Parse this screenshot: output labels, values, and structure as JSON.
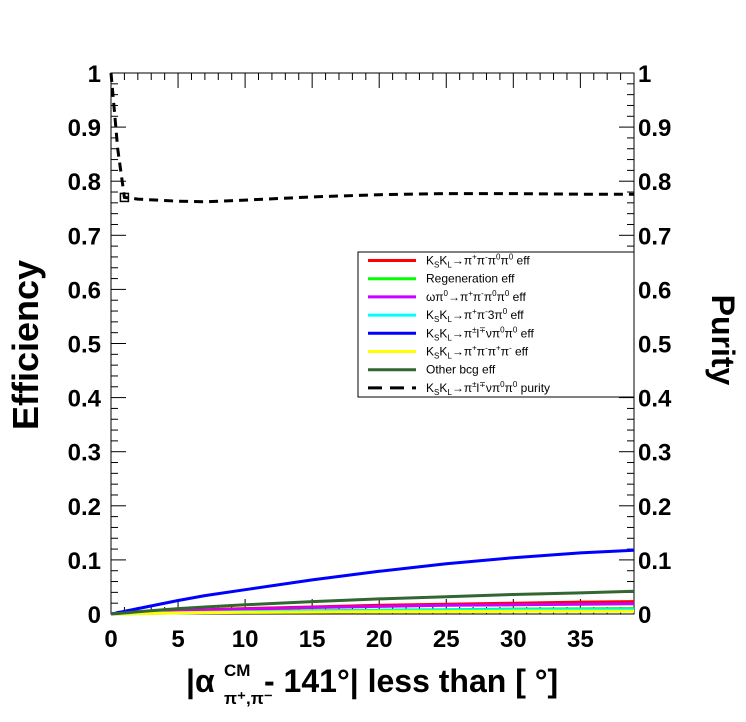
{
  "chart_data": {
    "type": "line",
    "title": "",
    "xlabel": "|α(CM, π+,π-) - 141°| less than [ °]",
    "xlabel_parts": {
      "pre": "|α",
      "sup": "CM",
      "sub": "π⁺,π⁻",
      "post": " - 141°| less than [ °]"
    },
    "ylabel": "Efficiency",
    "y2label": "Purity",
    "xlim": [
      0,
      39
    ],
    "ylim": [
      0,
      1
    ],
    "y2lim": [
      0,
      1
    ],
    "x_ticks": [
      "0",
      "5",
      "10",
      "15",
      "20",
      "25",
      "30",
      "35"
    ],
    "y_ticks": [
      "0",
      "0.1",
      "0.2",
      "0.3",
      "0.4",
      "0.5",
      "0.6",
      "0.7",
      "0.8",
      "0.9",
      "1"
    ],
    "legend_position": "center-right",
    "grid": false,
    "x": [
      0,
      0.25,
      0.5,
      1,
      2,
      5,
      7,
      10,
      15,
      20,
      25,
      30,
      35,
      39
    ],
    "series": [
      {
        "name": "KSKL→π+π-π0π0 eff",
        "legend": {
          "main": "K",
          "parts": [
            [
              "S",
              "sub"
            ],
            [
              "K",
              ""
            ],
            [
              "L",
              "sub"
            ],
            [
              "→π",
              ""
            ],
            [
              "+",
              "sup"
            ],
            [
              "π",
              ""
            ],
            [
              "-",
              "sup"
            ],
            [
              "π",
              ""
            ],
            [
              "0",
              "sup"
            ],
            [
              "π",
              ""
            ],
            [
              "0",
              "sup"
            ],
            [
              " eff",
              ""
            ]
          ]
        },
        "color": "#ff0000",
        "dash": false,
        "values": [
          0,
          0.0003,
          0.0006,
          0.0012,
          0.0025,
          0.006,
          0.008,
          0.01,
          0.013,
          0.016,
          0.018,
          0.02,
          0.022,
          0.023
        ]
      },
      {
        "name": "Regeneration eff",
        "legend": {
          "main": "Regeneration eff",
          "parts": []
        },
        "color": "#00ff00",
        "dash": false,
        "values": [
          0,
          0.0002,
          0.0004,
          0.0008,
          0.0016,
          0.003,
          0.004,
          0.005,
          0.006,
          0.007,
          0.008,
          0.009,
          0.0095,
          0.01
        ]
      },
      {
        "name": "ωπ0→π+π-π0π0 eff",
        "legend": {
          "main": "ωπ",
          "parts": [
            [
              "0",
              "sup"
            ],
            [
              "→π",
              ""
            ],
            [
              "+",
              "sup"
            ],
            [
              "π",
              ""
            ],
            [
              "-",
              "sup"
            ],
            [
              "π",
              ""
            ],
            [
              "0",
              "sup"
            ],
            [
              "π",
              ""
            ],
            [
              "0",
              "sup"
            ],
            [
              " eff",
              ""
            ]
          ]
        },
        "color": "#cc00ff",
        "dash": false,
        "values": [
          0,
          0.0003,
          0.0006,
          0.0012,
          0.0024,
          0.005,
          0.007,
          0.009,
          0.012,
          0.014,
          0.016,
          0.017,
          0.018,
          0.019
        ]
      },
      {
        "name": "KSKL→π+π-3π0 eff",
        "legend": {
          "main": "K",
          "parts": [
            [
              "S",
              "sub"
            ],
            [
              "K",
              ""
            ],
            [
              "L",
              "sub"
            ],
            [
              "→π",
              ""
            ],
            [
              "+",
              "sup"
            ],
            [
              "π",
              ""
            ],
            [
              "-",
              "sup"
            ],
            [
              "3π",
              ""
            ],
            [
              "0",
              "sup"
            ],
            [
              " eff",
              ""
            ]
          ]
        },
        "color": "#00ffff",
        "dash": false,
        "values": [
          0,
          0.0001,
          0.0002,
          0.0004,
          0.0008,
          0.002,
          0.003,
          0.004,
          0.005,
          0.006,
          0.007,
          0.0075,
          0.008,
          0.008
        ]
      },
      {
        "name": "KSKL→π±l∓νπ0π0 eff",
        "legend": {
          "main": "K",
          "parts": [
            [
              "S",
              "sub"
            ],
            [
              "K",
              ""
            ],
            [
              "L",
              "sub"
            ],
            [
              "→π",
              ""
            ],
            [
              "±",
              "sup"
            ],
            [
              "l",
              ""
            ],
            [
              "∓",
              "sup"
            ],
            [
              "νπ",
              ""
            ],
            [
              "0",
              "sup"
            ],
            [
              "π",
              ""
            ],
            [
              "0",
              "sup"
            ],
            [
              " eff",
              ""
            ]
          ]
        },
        "color": "#0000ff",
        "dash": false,
        "values": [
          0,
          0.0012,
          0.0025,
          0.005,
          0.01,
          0.025,
          0.034,
          0.045,
          0.063,
          0.079,
          0.093,
          0.104,
          0.113,
          0.118
        ]
      },
      {
        "name": "KSKL→π+π-π+π- eff",
        "legend": {
          "main": "K",
          "parts": [
            [
              "S",
              "sub"
            ],
            [
              "K",
              ""
            ],
            [
              "L",
              "sub"
            ],
            [
              "→π",
              ""
            ],
            [
              "+",
              "sup"
            ],
            [
              "π",
              ""
            ],
            [
              "-",
              "sup"
            ],
            [
              "π",
              ""
            ],
            [
              "+",
              "sup"
            ],
            [
              "π",
              ""
            ],
            [
              "-",
              "sup"
            ],
            [
              " eff",
              ""
            ]
          ]
        },
        "color": "#ffff00",
        "dash": false,
        "values": [
          0,
          0.0001,
          0.0002,
          0.0004,
          0.0008,
          0.002,
          0.0025,
          0.003,
          0.0035,
          0.004,
          0.0045,
          0.005,
          0.005,
          0.005
        ]
      },
      {
        "name": "Other bcg eff",
        "legend": {
          "main": "Other bcg eff",
          "parts": []
        },
        "color": "#336633",
        "dash": false,
        "values": [
          0,
          0.0005,
          0.001,
          0.002,
          0.004,
          0.01,
          0.013,
          0.017,
          0.023,
          0.028,
          0.032,
          0.036,
          0.039,
          0.042
        ]
      },
      {
        "name": "KSKL→π±l∓νπ0π0 purity",
        "legend": {
          "main": "K",
          "parts": [
            [
              "S",
              "sub"
            ],
            [
              "K",
              ""
            ],
            [
              "L",
              "sub"
            ],
            [
              "→π",
              ""
            ],
            [
              "±",
              "sup"
            ],
            [
              "l",
              ""
            ],
            [
              "∓",
              "sup"
            ],
            [
              "νπ",
              ""
            ],
            [
              "0",
              "sup"
            ],
            [
              "π",
              ""
            ],
            [
              "0",
              "sup"
            ],
            [
              " purity",
              ""
            ]
          ]
        },
        "color": "#000000",
        "dash": true,
        "axis": "right",
        "values": [
          1.0,
          0.93,
          0.86,
          0.77,
          0.767,
          0.763,
          0.762,
          0.765,
          0.771,
          0.775,
          0.777,
          0.777,
          0.776,
          0.776
        ]
      }
    ]
  }
}
